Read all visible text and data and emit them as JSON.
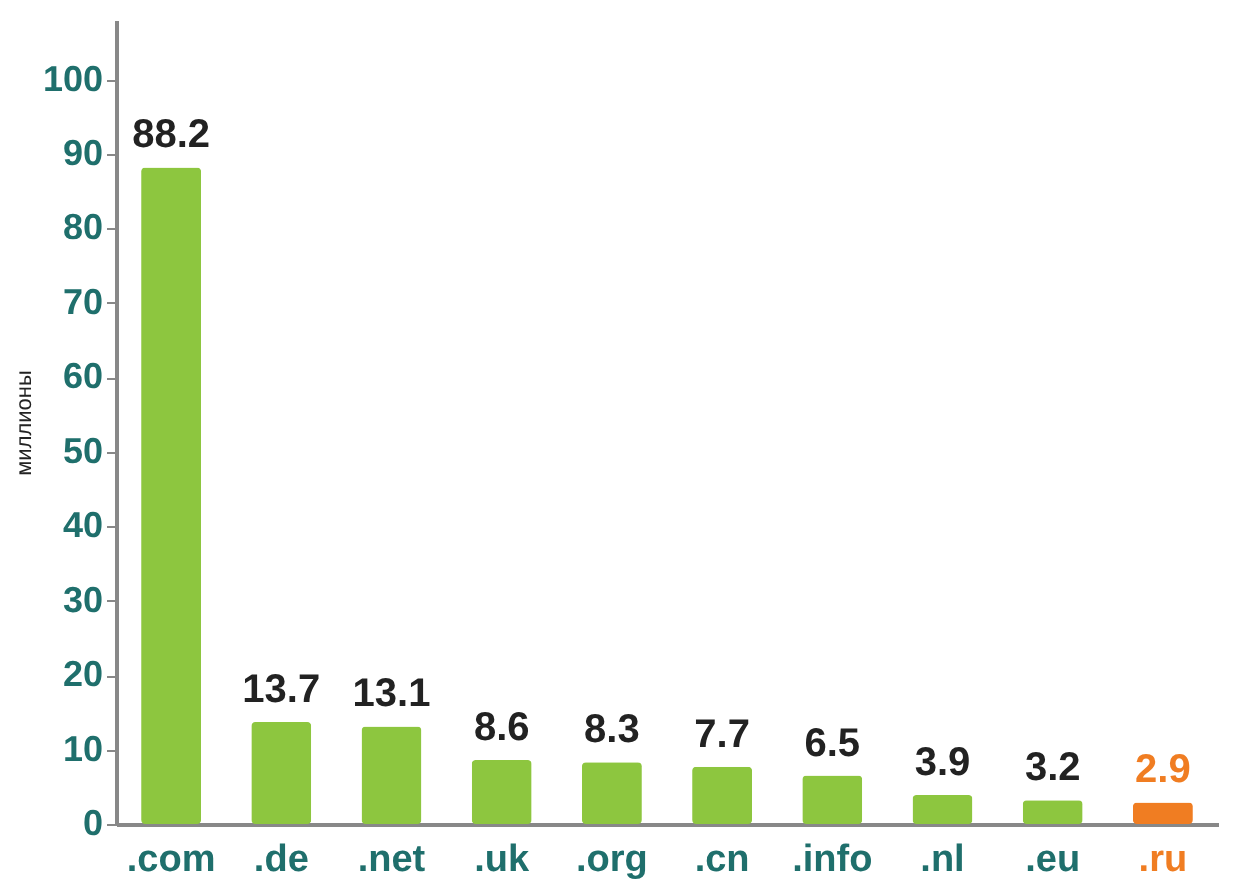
{
  "chart_data": {
    "type": "bar",
    "ylabel": "миллионы",
    "categories": [
      ".com",
      ".de",
      ".net",
      ".uk",
      ".org",
      ".cn",
      ".info",
      ".nl",
      ".eu",
      ".ru"
    ],
    "values": [
      88.2,
      13.7,
      13.1,
      8.6,
      8.3,
      7.7,
      6.5,
      3.9,
      3.2,
      2.9
    ],
    "colors": [
      "#8dc63f",
      "#8dc63f",
      "#8dc63f",
      "#8dc63f",
      "#8dc63f",
      "#8dc63f",
      "#8dc63f",
      "#8dc63f",
      "#8dc63f",
      "#f07d22"
    ],
    "ylim": [
      0,
      108
    ],
    "yticks": [
      0,
      10,
      20,
      30,
      40,
      50,
      60,
      70,
      80,
      90,
      100
    ],
    "data_labels": true,
    "grid": false
  }
}
